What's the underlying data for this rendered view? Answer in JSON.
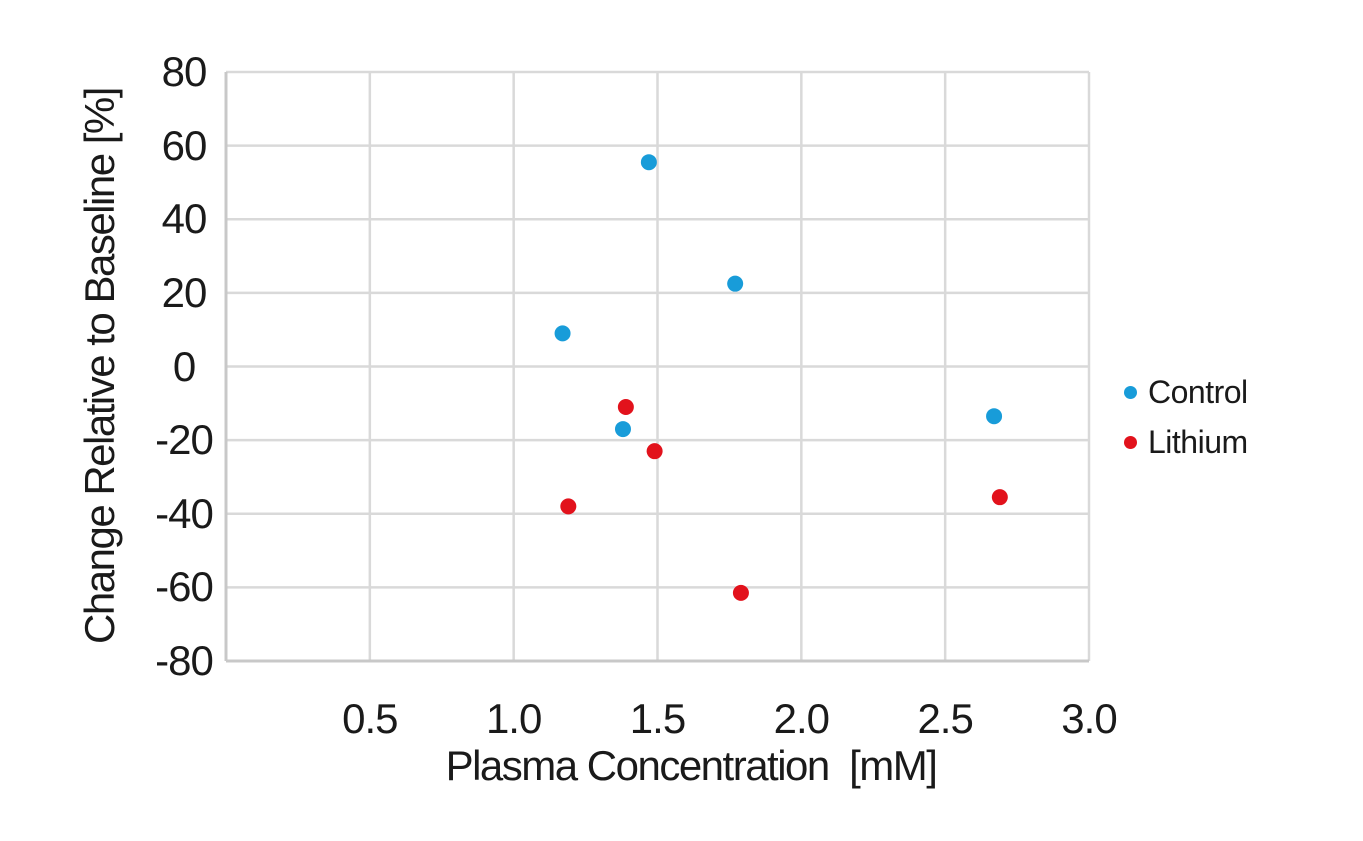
{
  "chart_data": {
    "type": "scatter",
    "title": "",
    "xlabel": "Plasma Concentration  [mM]",
    "ylabel": "Change Relative to Baseline [%]",
    "xlim": [
      0,
      3.0
    ],
    "ylim": [
      -80,
      80
    ],
    "xticks": [
      0.5,
      1.0,
      1.5,
      2.0,
      2.5,
      3.0
    ],
    "xtick_labels": [
      "0.5",
      "1.0",
      "1.5",
      "2.0",
      "2.5",
      "3.0"
    ],
    "yticks": [
      80,
      60,
      40,
      20,
      0,
      -20,
      -40,
      -60,
      -80
    ],
    "ytick_labels": [
      "80",
      "60",
      "40",
      "20",
      "0",
      "-20",
      "-40",
      "-60",
      "-80"
    ],
    "grid": true,
    "legend_position": "right",
    "background_color": "#FFFFFF",
    "gridline_color": "#D9D9D9",
    "axis_line_color": "#C8C8C8",
    "text_color": "#1A1A1A",
    "marker_radius_px": 8,
    "series": [
      {
        "name": "Control",
        "color": "#189CD9",
        "marker": "circle",
        "points": [
          [
            1.17,
            9
          ],
          [
            1.38,
            -17
          ],
          [
            1.47,
            55.5
          ],
          [
            1.77,
            22.5
          ],
          [
            2.67,
            -13.5
          ]
        ]
      },
      {
        "name": "Lithium",
        "color": "#E2121C",
        "marker": "circle",
        "points": [
          [
            1.19,
            -38
          ],
          [
            1.39,
            -11
          ],
          [
            1.49,
            -23
          ],
          [
            1.79,
            -61.5
          ],
          [
            2.69,
            -35.5
          ]
        ]
      }
    ]
  }
}
